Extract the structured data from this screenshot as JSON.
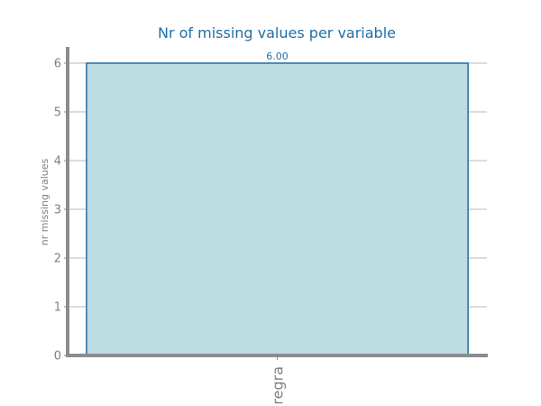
{
  "chart_data": {
    "type": "bar",
    "title": "Nr of missing values per variable",
    "xlabel": "",
    "ylabel": "nr missing values",
    "categories": [
      "regra"
    ],
    "values": [
      6
    ],
    "data_labels": [
      "6.00"
    ],
    "ylim": [
      0,
      6
    ],
    "yticks": [
      0,
      1,
      2,
      3,
      4,
      5,
      6
    ],
    "grid": "horizontal",
    "colors": {
      "bar_fill": "#bedde2",
      "bar_edge": "#1f6fa8",
      "title": "#1f6fa8",
      "data_label": "#1f6fa8",
      "axis": "#8c8c8c",
      "grid": "#c8c8c8",
      "tick_text": "#808080"
    }
  }
}
